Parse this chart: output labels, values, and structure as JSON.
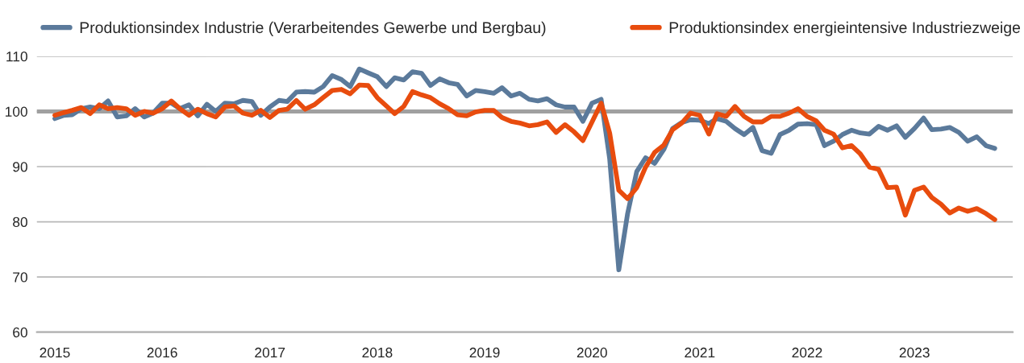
{
  "chart_data": {
    "type": "line",
    "x": [
      "2015-01",
      "2015-02",
      "2015-03",
      "2015-04",
      "2015-05",
      "2015-06",
      "2015-07",
      "2015-08",
      "2015-09",
      "2015-10",
      "2015-11",
      "2015-12",
      "2016-01",
      "2016-02",
      "2016-03",
      "2016-04",
      "2016-05",
      "2016-06",
      "2016-07",
      "2016-08",
      "2016-09",
      "2016-10",
      "2016-11",
      "2016-12",
      "2017-01",
      "2017-02",
      "2017-03",
      "2017-04",
      "2017-05",
      "2017-06",
      "2017-07",
      "2017-08",
      "2017-09",
      "2017-10",
      "2017-11",
      "2017-12",
      "2018-01",
      "2018-02",
      "2018-03",
      "2018-04",
      "2018-05",
      "2018-06",
      "2018-07",
      "2018-08",
      "2018-09",
      "2018-10",
      "2018-11",
      "2018-12",
      "2019-01",
      "2019-02",
      "2019-03",
      "2019-04",
      "2019-05",
      "2019-06",
      "2019-07",
      "2019-08",
      "2019-09",
      "2019-10",
      "2019-11",
      "2019-12",
      "2020-01",
      "2020-02",
      "2020-03",
      "2020-04",
      "2020-05",
      "2020-06",
      "2020-07",
      "2020-08",
      "2020-09",
      "2020-10",
      "2020-11",
      "2020-12",
      "2021-01",
      "2021-02",
      "2021-03",
      "2021-04",
      "2021-05",
      "2021-06",
      "2021-07",
      "2021-08",
      "2021-09",
      "2021-10",
      "2021-11",
      "2021-12",
      "2022-01",
      "2022-02",
      "2022-03",
      "2022-04",
      "2022-05",
      "2022-06",
      "2022-07",
      "2022-08",
      "2022-09",
      "2022-10",
      "2022-11",
      "2022-12",
      "2023-01",
      "2023-02",
      "2023-03",
      "2023-04",
      "2023-05",
      "2023-06",
      "2023-07",
      "2023-08",
      "2023-09",
      "2023-10"
    ],
    "series": [
      {
        "name": "Produktionsindex Industrie (Verarbeitendes Gewerbe und Bergbau)",
        "color": "#5b7a9b",
        "values": [
          98.7,
          99.3,
          99.4,
          100.5,
          100.8,
          100.5,
          101.9,
          99,
          99.2,
          100.5,
          99,
          99.7,
          101.5,
          101.5,
          100.5,
          101.2,
          99.2,
          101.3,
          100,
          101.5,
          101.4,
          102,
          101.8,
          99.3,
          100.8,
          102,
          101.8,
          103.5,
          103.6,
          103.5,
          104.5,
          106.5,
          105.8,
          104.5,
          107.7,
          107,
          106.3,
          104.5,
          106.1,
          105.7,
          107.2,
          106.9,
          104.7,
          105.9,
          105.2,
          104.9,
          102.8,
          103.8,
          103.6,
          103.3,
          104.3,
          102.8,
          103.3,
          102.2,
          101.9,
          102.3,
          101.2,
          100.8,
          100.8,
          98.2,
          101.5,
          102.2,
          91.4,
          71.3,
          81.5,
          89.1,
          91.6,
          90.6,
          93.1,
          96.9,
          98,
          98.5,
          98.4,
          97.8,
          98.7,
          98.2,
          96.9,
          95.8,
          97.1,
          92.9,
          92.4,
          95.8,
          96.6,
          97.7,
          97.8,
          97.6,
          93.8,
          94.6,
          95.8,
          96.6,
          96.1,
          95.9,
          97.3,
          96.6,
          97.4,
          95.3,
          96.9,
          98.8,
          96.7,
          96.8,
          97.1,
          96.2,
          94.6,
          95.4,
          93.8,
          93.3
        ]
      },
      {
        "name": "Produktionsindex energieintensive Industriezweige",
        "color": "#e84c0e",
        "values": [
          99.3,
          99.8,
          100.2,
          100.7,
          99.6,
          101.2,
          100.5,
          100.7,
          100.5,
          99.3,
          100,
          99.7,
          100.5,
          101.9,
          100.5,
          99.3,
          100.4,
          99.6,
          99,
          100.8,
          101,
          99.7,
          99.3,
          100.2,
          98.9,
          100.2,
          100.4,
          102,
          100.4,
          101.2,
          102.5,
          103.8,
          104,
          103.2,
          104.8,
          104.7,
          102.5,
          101,
          99.6,
          100.9,
          103.6,
          103,
          102.5,
          101.4,
          100.5,
          99.4,
          99.2,
          99.9,
          100.2,
          100.2,
          98.9,
          98.2,
          97.9,
          97.4,
          97.6,
          98.1,
          96.2,
          97.6,
          96.3,
          94.7,
          98.1,
          101.5,
          96.1,
          85.7,
          84.2,
          86.2,
          89.9,
          92.6,
          93.9,
          96.7,
          97.9,
          99.7,
          99.3,
          95.9,
          99.6,
          99.1,
          100.9,
          99.1,
          98.1,
          98.1,
          99.1,
          99.1,
          99.7,
          100.5,
          99.1,
          98.3,
          96.6,
          95.9,
          93.4,
          93.8,
          92.3,
          89.9,
          89.5,
          86.2,
          86.3,
          81.2,
          85.7,
          86.3,
          84.4,
          83.2,
          81.6,
          82.5,
          81.9,
          82.4,
          81.5,
          80.4
        ]
      }
    ],
    "xlim": [
      "2014-11",
      "2023-12"
    ],
    "xticks": [
      {
        "value": "2015-01",
        "label": "2015"
      },
      {
        "value": "2016-01",
        "label": "2016"
      },
      {
        "value": "2017-01",
        "label": "2017"
      },
      {
        "value": "2018-01",
        "label": "2018"
      },
      {
        "value": "2019-01",
        "label": "2019"
      },
      {
        "value": "2020-01",
        "label": "2020"
      },
      {
        "value": "2021-01",
        "label": "2021"
      },
      {
        "value": "2022-01",
        "label": "2022"
      },
      {
        "value": "2023-01",
        "label": "2023"
      }
    ],
    "ylim": [
      60,
      110
    ],
    "yticks": [
      60,
      70,
      80,
      90,
      100,
      110
    ],
    "ref_lines": [
      {
        "axis": "y",
        "value": 100,
        "color": "#a0a0a0"
      }
    ],
    "grid": "y",
    "legend": "top",
    "marker": "none",
    "line_style": "solid"
  }
}
